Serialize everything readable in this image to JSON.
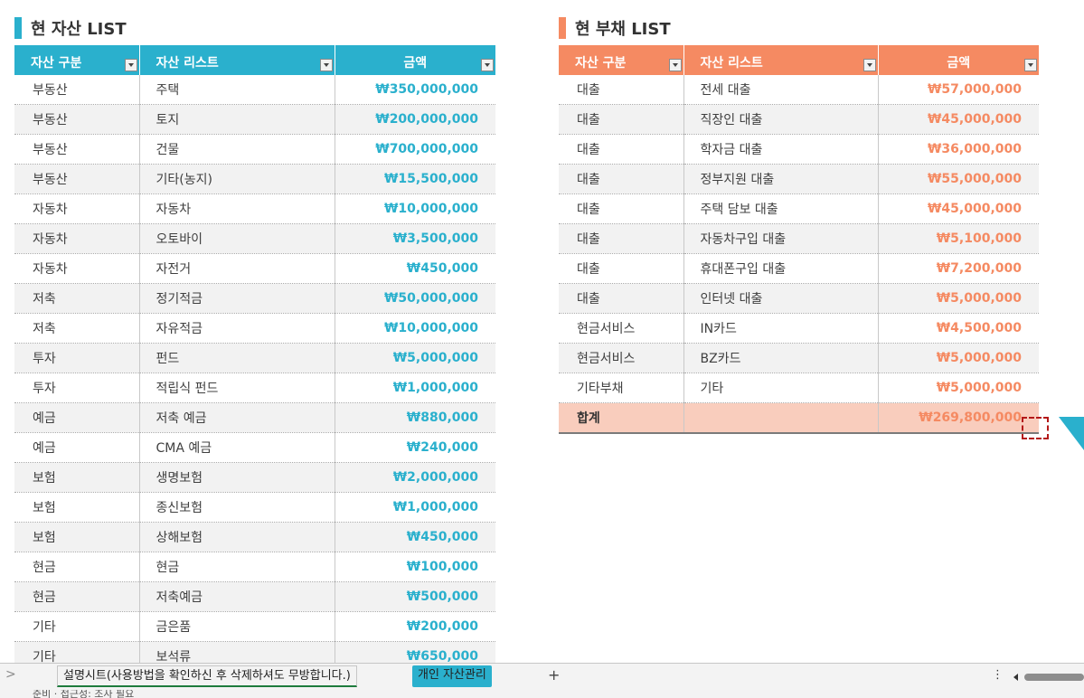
{
  "asset": {
    "title": "현 자산 LIST",
    "accent": "#2ab0cd",
    "headers": [
      "자산 구분",
      "자산 리스트",
      "금액"
    ],
    "rows": [
      [
        "부동산",
        "주택",
        "₩350,000,000"
      ],
      [
        "부동산",
        "토지",
        "₩200,000,000"
      ],
      [
        "부동산",
        "건물",
        "₩700,000,000"
      ],
      [
        "부동산",
        "기타(농지)",
        "₩15,500,000"
      ],
      [
        "자동차",
        "자동차",
        "₩10,000,000"
      ],
      [
        "자동차",
        "오토바이",
        "₩3,500,000"
      ],
      [
        "자동차",
        "자전거",
        "₩450,000"
      ],
      [
        "저축",
        "정기적금",
        "₩50,000,000"
      ],
      [
        "저축",
        "자유적금",
        "₩10,000,000"
      ],
      [
        "투자",
        "펀드",
        "₩5,000,000"
      ],
      [
        "투자",
        "적립식 펀드",
        "₩1,000,000"
      ],
      [
        "예금",
        "저축 예금",
        "₩880,000"
      ],
      [
        "예금",
        "CMA 예금",
        "₩240,000"
      ],
      [
        "보험",
        "생명보험",
        "₩2,000,000"
      ],
      [
        "보험",
        "종신보험",
        "₩1,000,000"
      ],
      [
        "보험",
        "상해보험",
        "₩450,000"
      ],
      [
        "현금",
        "현금",
        "₩100,000"
      ],
      [
        "현금",
        "저축예금",
        "₩500,000"
      ],
      [
        "기타",
        "금은품",
        "₩200,000"
      ],
      [
        "기타",
        "보석류",
        "₩650,000"
      ]
    ]
  },
  "debt": {
    "title": "현 부채 LIST",
    "accent": "#f58a62",
    "headers": [
      "자산 구분",
      "자산 리스트",
      "금액"
    ],
    "rows": [
      [
        "대출",
        "전세 대출",
        "₩57,000,000"
      ],
      [
        "대출",
        "직장인 대출",
        "₩45,000,000"
      ],
      [
        "대출",
        "학자금 대출",
        "₩36,000,000"
      ],
      [
        "대출",
        "정부지원 대출",
        "₩55,000,000"
      ],
      [
        "대출",
        "주택 담보 대출",
        "₩45,000,000"
      ],
      [
        "대출",
        "자동차구입 대출",
        "₩5,100,000"
      ],
      [
        "대출",
        "휴대폰구입 대출",
        "₩7,200,000"
      ],
      [
        "대출",
        "인터넷 대출",
        "₩5,000,000"
      ],
      [
        "현금서비스",
        "IN카드",
        "₩4,500,000"
      ],
      [
        "현금서비스",
        "BZ카드",
        "₩5,000,000"
      ],
      [
        "기타부채",
        "기타",
        "₩5,000,000"
      ]
    ],
    "total_label": "합계",
    "total_value": "₩269,800,000"
  },
  "sheet_tabs": {
    "nav": ">",
    "tabs": [
      "설명시트(사용방법을 확인하신 후 삭제하셔도 무방합니다.)",
      "개인 자산관리"
    ],
    "active_index": 1,
    "add": "+",
    "more": "⋮"
  },
  "status": {
    "text": "준비 · 접근성: 조사 필요"
  }
}
